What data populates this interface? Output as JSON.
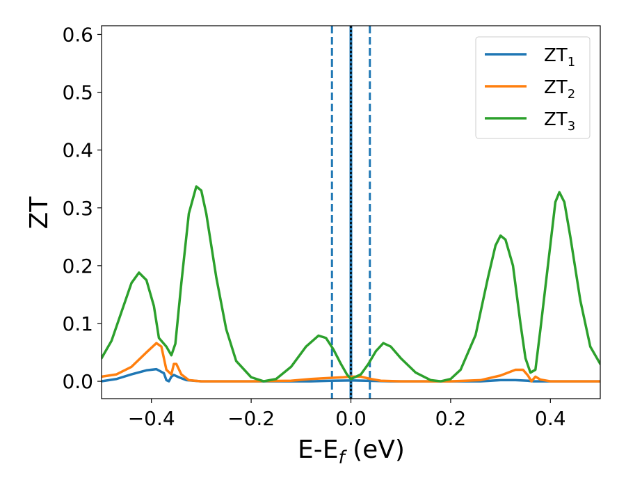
{
  "chart_data": {
    "type": "line",
    "title": "",
    "xlabel": "E-E_f (eV)",
    "xlabel_main": "E-E",
    "xlabel_sub": "f",
    "xlabel_tail": " (eV)",
    "ylabel": "ZT",
    "xlim": [
      -0.5,
      0.5
    ],
    "ylim": [
      -0.03,
      0.615
    ],
    "grid": false,
    "legend_position": "top-right",
    "x_ticks": [
      -0.4,
      -0.2,
      0.0,
      0.2,
      0.4
    ],
    "x_tick_labels": [
      "−0.4",
      "−0.2",
      "0.0",
      "0.2",
      "0.4"
    ],
    "y_ticks": [
      0.0,
      0.1,
      0.2,
      0.3,
      0.4,
      0.5,
      0.6
    ],
    "y_tick_labels": [
      "0.0",
      "0.1",
      "0.2",
      "0.3",
      "0.4",
      "0.5",
      "0.6"
    ],
    "vertical_lines": [
      {
        "x": -0.038,
        "color": "#1f77b4",
        "style": "dashed"
      },
      {
        "x": 0.0,
        "color": "#1f77b4",
        "style": "solid"
      },
      {
        "x": 0.0,
        "color": "#000000",
        "style": "dotted"
      },
      {
        "x": 0.038,
        "color": "#1f77b4",
        "style": "dashed"
      }
    ],
    "series": [
      {
        "name": "ZT1",
        "legend_main": "ZT",
        "legend_sub": "1",
        "color": "#1f77b4",
        "points": [
          [
            -0.5,
            0.0
          ],
          [
            -0.47,
            0.004
          ],
          [
            -0.44,
            0.012
          ],
          [
            -0.41,
            0.019
          ],
          [
            -0.39,
            0.021
          ],
          [
            -0.375,
            0.014
          ],
          [
            -0.37,
            0.002
          ],
          [
            -0.365,
            0.0
          ],
          [
            -0.36,
            0.008
          ],
          [
            -0.355,
            0.011
          ],
          [
            -0.345,
            0.007
          ],
          [
            -0.33,
            0.002
          ],
          [
            -0.3,
            0.0
          ],
          [
            -0.15,
            0.0
          ],
          [
            -0.08,
            0.0
          ],
          [
            -0.04,
            0.001
          ],
          [
            0.0,
            0.0015
          ],
          [
            0.03,
            0.001
          ],
          [
            0.08,
            0.0
          ],
          [
            0.2,
            0.0
          ],
          [
            0.26,
            0.0
          ],
          [
            0.3,
            0.002
          ],
          [
            0.33,
            0.002
          ],
          [
            0.355,
            0.001
          ],
          [
            0.365,
            0.0
          ],
          [
            0.4,
            0.0
          ],
          [
            0.5,
            0.0
          ]
        ]
      },
      {
        "name": "ZT2",
        "legend_main": "ZT",
        "legend_sub": "2",
        "color": "#ff7f0e",
        "points": [
          [
            -0.5,
            0.008
          ],
          [
            -0.47,
            0.012
          ],
          [
            -0.44,
            0.025
          ],
          [
            -0.41,
            0.05
          ],
          [
            -0.39,
            0.066
          ],
          [
            -0.38,
            0.06
          ],
          [
            -0.37,
            0.02
          ],
          [
            -0.36,
            0.012
          ],
          [
            -0.355,
            0.03
          ],
          [
            -0.35,
            0.03
          ],
          [
            -0.34,
            0.012
          ],
          [
            -0.325,
            0.002
          ],
          [
            -0.3,
            0.0
          ],
          [
            -0.2,
            0.0
          ],
          [
            -0.12,
            0.001
          ],
          [
            -0.08,
            0.004
          ],
          [
            -0.04,
            0.006
          ],
          [
            -0.015,
            0.007
          ],
          [
            0.0,
            0.008
          ],
          [
            0.02,
            0.008
          ],
          [
            0.04,
            0.004
          ],
          [
            0.06,
            0.001
          ],
          [
            0.1,
            0.0
          ],
          [
            0.2,
            0.0
          ],
          [
            0.26,
            0.002
          ],
          [
            0.3,
            0.01
          ],
          [
            0.33,
            0.02
          ],
          [
            0.345,
            0.02
          ],
          [
            0.355,
            0.01
          ],
          [
            0.362,
            0.0
          ],
          [
            0.37,
            0.008
          ],
          [
            0.38,
            0.003
          ],
          [
            0.4,
            0.0
          ],
          [
            0.5,
            0.0
          ]
        ]
      },
      {
        "name": "ZT3",
        "legend_main": "ZT",
        "legend_sub": "3",
        "color": "#2ca02c",
        "points": [
          [
            -0.5,
            0.04
          ],
          [
            -0.48,
            0.07
          ],
          [
            -0.46,
            0.12
          ],
          [
            -0.44,
            0.17
          ],
          [
            -0.425,
            0.188
          ],
          [
            -0.41,
            0.175
          ],
          [
            -0.395,
            0.13
          ],
          [
            -0.385,
            0.075
          ],
          [
            -0.37,
            0.06
          ],
          [
            -0.36,
            0.045
          ],
          [
            -0.352,
            0.065
          ],
          [
            -0.34,
            0.17
          ],
          [
            -0.325,
            0.29
          ],
          [
            -0.31,
            0.337
          ],
          [
            -0.3,
            0.33
          ],
          [
            -0.29,
            0.29
          ],
          [
            -0.27,
            0.18
          ],
          [
            -0.25,
            0.09
          ],
          [
            -0.23,
            0.035
          ],
          [
            -0.2,
            0.007
          ],
          [
            -0.175,
            0.0
          ],
          [
            -0.15,
            0.004
          ],
          [
            -0.12,
            0.025
          ],
          [
            -0.09,
            0.06
          ],
          [
            -0.065,
            0.079
          ],
          [
            -0.05,
            0.075
          ],
          [
            -0.035,
            0.055
          ],
          [
            -0.02,
            0.03
          ],
          [
            -0.008,
            0.012
          ],
          [
            0.0,
            0.004
          ],
          [
            0.01,
            0.008
          ],
          [
            0.02,
            0.012
          ],
          [
            0.035,
            0.03
          ],
          [
            0.05,
            0.052
          ],
          [
            0.065,
            0.066
          ],
          [
            0.08,
            0.06
          ],
          [
            0.1,
            0.04
          ],
          [
            0.13,
            0.015
          ],
          [
            0.16,
            0.002
          ],
          [
            0.18,
            0.0
          ],
          [
            0.2,
            0.004
          ],
          [
            0.22,
            0.02
          ],
          [
            0.25,
            0.08
          ],
          [
            0.275,
            0.18
          ],
          [
            0.29,
            0.235
          ],
          [
            0.3,
            0.252
          ],
          [
            0.31,
            0.245
          ],
          [
            0.325,
            0.2
          ],
          [
            0.34,
            0.1
          ],
          [
            0.35,
            0.04
          ],
          [
            0.36,
            0.015
          ],
          [
            0.37,
            0.02
          ],
          [
            0.38,
            0.09
          ],
          [
            0.395,
            0.2
          ],
          [
            0.41,
            0.31
          ],
          [
            0.418,
            0.327
          ],
          [
            0.428,
            0.31
          ],
          [
            0.44,
            0.25
          ],
          [
            0.46,
            0.14
          ],
          [
            0.48,
            0.06
          ],
          [
            0.5,
            0.03
          ]
        ]
      }
    ]
  }
}
